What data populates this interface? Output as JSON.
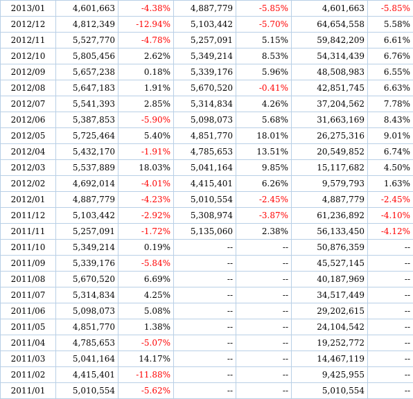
{
  "table": {
    "rows": [
      [
        "2013/01",
        "4,601,663",
        "-4.38%",
        "4,887,779",
        "-5.85%",
        "4,601,663",
        "-5.85%"
      ],
      [
        "2012/12",
        "4,812,349",
        "-12.94%",
        "5,103,442",
        "-5.70%",
        "64,654,558",
        "5.58%"
      ],
      [
        "2012/11",
        "5,527,770",
        "-4.78%",
        "5,257,091",
        "5.15%",
        "59,842,209",
        "6.61%"
      ],
      [
        "2012/10",
        "5,805,456",
        "2.62%",
        "5,349,214",
        "8.53%",
        "54,314,439",
        "6.76%"
      ],
      [
        "2012/09",
        "5,657,238",
        "0.18%",
        "5,339,176",
        "5.96%",
        "48,508,983",
        "6.55%"
      ],
      [
        "2012/08",
        "5,647,183",
        "1.91%",
        "5,670,520",
        "-0.41%",
        "42,851,745",
        "6.63%"
      ],
      [
        "2012/07",
        "5,541,393",
        "2.85%",
        "5,314,834",
        "4.26%",
        "37,204,562",
        "7.78%"
      ],
      [
        "2012/06",
        "5,387,853",
        "-5.90%",
        "5,098,073",
        "5.68%",
        "31,663,169",
        "8.43%"
      ],
      [
        "2012/05",
        "5,725,464",
        "5.40%",
        "4,851,770",
        "18.01%",
        "26,275,316",
        "9.01%"
      ],
      [
        "2012/04",
        "5,432,170",
        "-1.91%",
        "4,785,653",
        "13.51%",
        "20,549,852",
        "6.74%"
      ],
      [
        "2012/03",
        "5,537,889",
        "18.03%",
        "5,041,164",
        "9.85%",
        "15,117,682",
        "4.50%"
      ],
      [
        "2012/02",
        "4,692,014",
        "-4.01%",
        "4,415,401",
        "6.26%",
        "9,579,793",
        "1.63%"
      ],
      [
        "2012/01",
        "4,887,779",
        "-4.23%",
        "5,010,554",
        "-2.45%",
        "4,887,779",
        "-2.45%"
      ],
      [
        "2011/12",
        "5,103,442",
        "-2.92%",
        "5,308,974",
        "-3.87%",
        "61,236,892",
        "-4.10%"
      ],
      [
        "2011/11",
        "5,257,091",
        "-1.72%",
        "5,135,060",
        "2.38%",
        "56,133,450",
        "-4.12%"
      ],
      [
        "2011/10",
        "5,349,214",
        "0.19%",
        "--",
        "--",
        "50,876,359",
        "--"
      ],
      [
        "2011/09",
        "5,339,176",
        "-5.84%",
        "--",
        "--",
        "45,527,145",
        "--"
      ],
      [
        "2011/08",
        "5,670,520",
        "6.69%",
        "--",
        "--",
        "40,187,969",
        "--"
      ],
      [
        "2011/07",
        "5,314,834",
        "4.25%",
        "--",
        "--",
        "34,517,449",
        "--"
      ],
      [
        "2011/06",
        "5,098,073",
        "5.08%",
        "--",
        "--",
        "29,202,615",
        "--"
      ],
      [
        "2011/05",
        "4,851,770",
        "1.38%",
        "--",
        "--",
        "24,104,542",
        "--"
      ],
      [
        "2011/04",
        "4,785,653",
        "-5.07%",
        "--",
        "--",
        "19,252,772",
        "--"
      ],
      [
        "2011/03",
        "5,041,164",
        "14.17%",
        "--",
        "--",
        "14,467,119",
        "--"
      ],
      [
        "2011/02",
        "4,415,401",
        "-11.88%",
        "--",
        "--",
        "9,425,955",
        "--"
      ],
      [
        "2011/01",
        "5,010,554",
        "-5.62%",
        "--",
        "--",
        "5,010,554",
        "--"
      ]
    ]
  },
  "colors": {
    "negative_text": "#ff0000",
    "grid_border": "#b8cfe6"
  }
}
